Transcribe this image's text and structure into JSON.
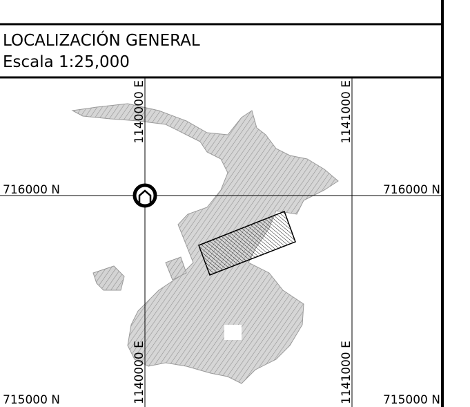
{
  "header": {
    "title": "LOCALIZACIÓN GENERAL",
    "scale": "Escala 1:25,000"
  },
  "grid_labels": {
    "left": [
      "716000 N",
      "715000 N"
    ],
    "right": [
      "716000 N",
      "715000 N"
    ],
    "top": [
      "1140000 E",
      "1141000 E"
    ],
    "bottom": [
      "1140000 E",
      "1141000 E"
    ]
  }
}
